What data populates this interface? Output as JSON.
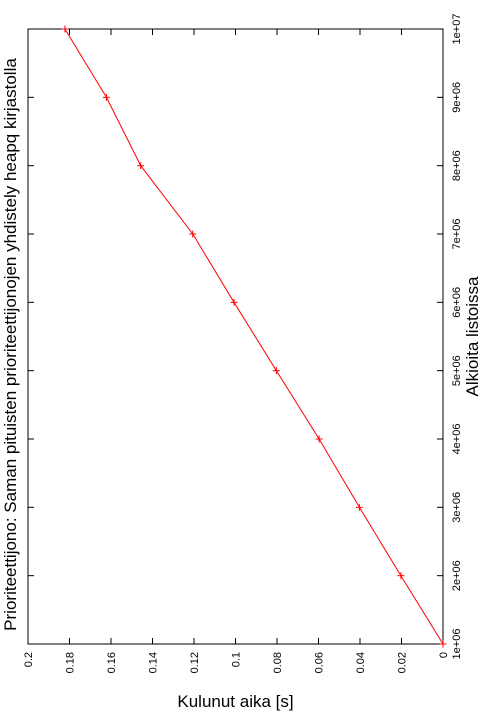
{
  "chart_data": {
    "type": "line",
    "title": "Prioriteettijono: Saman pituisten prioriteettijonojen yhdistely heapq kirjastolla",
    "xlabel": "Alkioita listoissa",
    "ylabel": "Kulunut aika [s]",
    "xlim": [
      1000000,
      10000000
    ],
    "ylim": [
      0,
      0.2
    ],
    "x_ticks": [
      "1e+06",
      "2e+06",
      "3e+06",
      "4e+06",
      "5e+06",
      "6e+06",
      "7e+06",
      "8e+06",
      "9e+06",
      "1e+07"
    ],
    "y_ticks": [
      "0",
      "0.02",
      "0.04",
      "0.06",
      "0.08",
      "0.1",
      "0.12",
      "0.14",
      "0.16",
      "0.18",
      "0.2"
    ],
    "orientation": "rotated-90-ccw",
    "grid": false,
    "series": [
      {
        "color": "#ff0000",
        "marker": "plus",
        "points": [
          [
            1000000,
            0.0
          ],
          [
            2000000,
            0.0203
          ],
          [
            3000000,
            0.0403
          ],
          [
            4000000,
            0.0597
          ],
          [
            5000000,
            0.0803
          ],
          [
            6000000,
            0.1007
          ],
          [
            7000000,
            0.1206
          ],
          [
            8000000,
            0.1457
          ],
          [
            9000000,
            0.1622
          ],
          [
            10000000,
            0.1822
          ]
        ]
      }
    ]
  }
}
